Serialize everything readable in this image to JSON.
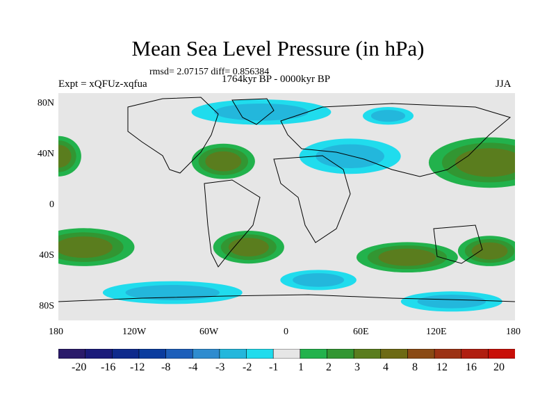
{
  "title": "Mean Sea Level Pressure (in hPa)",
  "stats": "rmsd= 2.07157 diff= 0.856384",
  "period": "1764kyr BP - 0000kyr BP",
  "experiment": "Expt = xQFUz-xqfua",
  "season": "JJA",
  "y_axis": [
    {
      "label": "80N",
      "lat": 80
    },
    {
      "label": "40N",
      "lat": 40
    },
    {
      "label": "0",
      "lat": 0
    },
    {
      "label": "40S",
      "lat": -40
    },
    {
      "label": "80S",
      "lat": -80
    }
  ],
  "x_axis": [
    {
      "label": "180",
      "lon": -180
    },
    {
      "label": "120W",
      "lon": -120
    },
    {
      "label": "60W",
      "lon": -60
    },
    {
      "label": "0",
      "lon": 0
    },
    {
      "label": "60E",
      "lon": 60
    },
    {
      "label": "120E",
      "lon": 120
    },
    {
      "label": "180",
      "lon": 180
    }
  ],
  "colorbar": {
    "colors": [
      "#2a1a6a",
      "#1a1a7a",
      "#0f2a8c",
      "#0a3c9e",
      "#1d5fba",
      "#2f8ccf",
      "#23b7dc",
      "#20dced",
      "#e6e6e6",
      "#22b24c",
      "#329632",
      "#5a7d1e",
      "#6d6a14",
      "#8a4a14",
      "#9c3214",
      "#b01e10",
      "#c80f08"
    ],
    "levels": [
      "-20",
      "-16",
      "-12",
      "-8",
      "-4",
      "-3",
      "-2",
      "-1",
      "1",
      "2",
      "3",
      "4",
      "8",
      "12",
      "16",
      "20"
    ]
  },
  "regions": [
    {
      "name": "north-pacific-high-west",
      "lon": -180,
      "lat": 40,
      "rx": 18,
      "ry": 16,
      "level": 3
    },
    {
      "name": "north-pacific-high-east",
      "lon": 160,
      "lat": 35,
      "rx": 48,
      "ry": 20,
      "level": 3
    },
    {
      "name": "north-atlantic-high",
      "lon": -50,
      "lat": 36,
      "rx": 25,
      "ry": 14,
      "level": 3
    },
    {
      "name": "south-pacific-high-west",
      "lon": -160,
      "lat": -32,
      "rx": 40,
      "ry": 15,
      "level": 3
    },
    {
      "name": "south-pacific-high-east",
      "lon": 160,
      "lat": -35,
      "rx": 25,
      "ry": 12,
      "level": 3
    },
    {
      "name": "south-atlantic-high",
      "lon": -30,
      "lat": -32,
      "rx": 28,
      "ry": 13,
      "level": 3
    },
    {
      "name": "indian-ocean-high",
      "lon": 95,
      "lat": -40,
      "rx": 40,
      "ry": 12,
      "level": 3
    },
    {
      "name": "eurasia-low",
      "lon": 50,
      "lat": 40,
      "rx": 40,
      "ry": 14,
      "level": -2
    },
    {
      "name": "arctic-low",
      "lon": -20,
      "lat": 75,
      "rx": 55,
      "ry": 10,
      "level": -2
    },
    {
      "name": "siberia-low",
      "lon": 80,
      "lat": 72,
      "rx": 20,
      "ry": 7,
      "level": -2
    },
    {
      "name": "southern-ocean-low-1",
      "lon": -90,
      "lat": -68,
      "rx": 55,
      "ry": 9,
      "level": -2
    },
    {
      "name": "southern-ocean-low-2",
      "lon": 25,
      "lat": -58,
      "rx": 30,
      "ry": 8,
      "level": -2
    },
    {
      "name": "southern-ocean-low-3",
      "lon": 130,
      "lat": -75,
      "rx": 40,
      "ry": 8,
      "level": -1
    }
  ]
}
